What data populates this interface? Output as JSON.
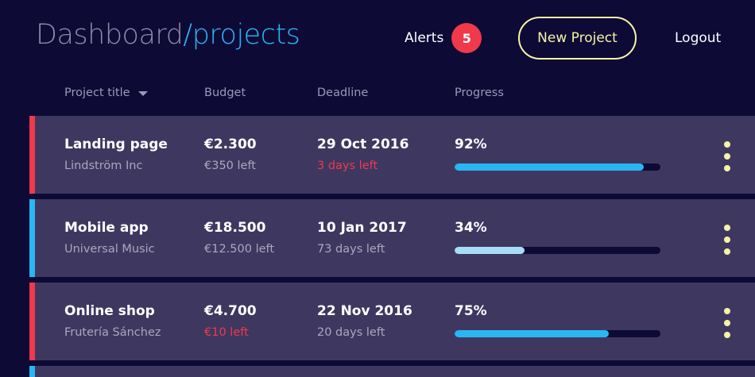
{
  "header": {
    "brand_main": "Dashboard",
    "brand_slash": "/",
    "brand_section": "projects",
    "alerts_label": "Alerts",
    "alerts_count": "5",
    "new_project_label": "New Project",
    "logout_label": "Logout"
  },
  "columns": {
    "title": "Project title",
    "budget": "Budget",
    "deadline": "Deadline",
    "progress": "Progress"
  },
  "colors": {
    "background": "#0d0a36",
    "row": "#3e3860",
    "accent_red": "#f0394a",
    "accent_blue": "#2ab6f3",
    "accent_yellow": "#f7f3a7",
    "progress_light": "#a9dcf7"
  },
  "projects": [
    {
      "title": "Landing page",
      "client": "Lindström Inc",
      "budget": "€2.300",
      "budget_left": "€350 left",
      "budget_warning": false,
      "deadline": "29 Oct 2016",
      "days_left": "3 days left",
      "deadline_warning": true,
      "progress_label": "92%",
      "progress": 0.92,
      "accent": "#f0394a",
      "bar_color": "#2ab6f3"
    },
    {
      "title": "Mobile app",
      "client": "Universal Music",
      "budget": "€18.500",
      "budget_left": "€12.500 left",
      "budget_warning": false,
      "deadline": "10 Jan 2017",
      "days_left": "73 days left",
      "deadline_warning": false,
      "progress_label": "34%",
      "progress": 0.34,
      "accent": "#2ab6f3",
      "bar_color": "#a9dcf7"
    },
    {
      "title": "Online shop",
      "client": "Frutería Sánchez",
      "budget": "€4.700",
      "budget_left": "€10 left",
      "budget_warning": true,
      "deadline": "22 Nov 2016",
      "days_left": "20 days left",
      "deadline_warning": false,
      "progress_label": "75%",
      "progress": 0.75,
      "accent": "#f0394a",
      "bar_color": "#2ab6f3"
    }
  ],
  "partial_row_accent": "#2ab6f3"
}
